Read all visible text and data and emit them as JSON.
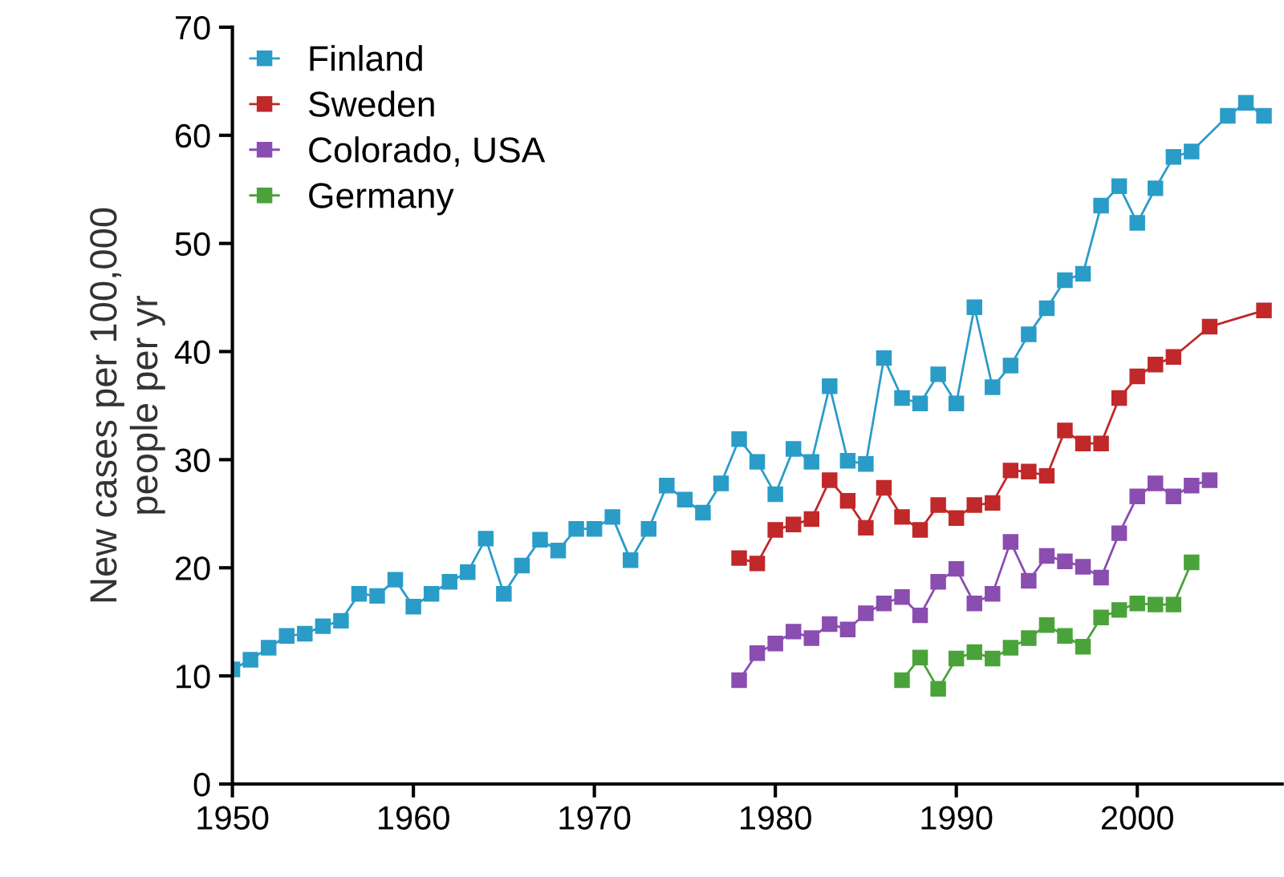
{
  "chart_data": {
    "type": "line",
    "ylabel": "New cases per 100,000\npeople per yr",
    "xlim": [
      1950,
      2008
    ],
    "xticks": [
      1950,
      1960,
      1970,
      1980,
      1990,
      2000
    ],
    "ylim": [
      0,
      70
    ],
    "yticks": [
      0,
      10,
      20,
      30,
      40,
      50,
      60,
      70
    ],
    "grid": false,
    "legend": "top left",
    "marker": "square",
    "line_style": "solid",
    "series": [
      {
        "name": "Finland",
        "color": "#2a9cc8",
        "x": [
          1950,
          1951,
          1952,
          1953,
          1954,
          1955,
          1956,
          1957,
          1958,
          1959,
          1960,
          1961,
          1962,
          1963,
          1964,
          1965,
          1966,
          1967,
          1968,
          1969,
          1970,
          1971,
          1972,
          1973,
          1974,
          1975,
          1976,
          1977,
          1978,
          1979,
          1980,
          1981,
          1982,
          1983,
          1984,
          1985,
          1986,
          1987,
          1988,
          1989,
          1990,
          1991,
          1992,
          1993,
          1994,
          1995,
          1996,
          1997,
          1998,
          1999,
          2000,
          2001,
          2002,
          2003,
          2005,
          2006,
          2007
        ],
        "values": [
          10.6,
          11.5,
          12.6,
          13.7,
          13.9,
          14.6,
          15.1,
          17.6,
          17.4,
          18.9,
          16.4,
          17.6,
          18.7,
          19.6,
          22.7,
          17.6,
          20.2,
          22.6,
          21.6,
          23.6,
          23.6,
          24.7,
          20.7,
          23.6,
          27.6,
          26.3,
          25.1,
          27.8,
          31.9,
          29.8,
          26.8,
          31.0,
          29.8,
          36.8,
          29.9,
          29.6,
          39.4,
          35.7,
          35.2,
          37.9,
          35.2,
          44.1,
          36.7,
          38.7,
          41.6,
          44.0,
          46.6,
          47.2,
          53.5,
          55.3,
          51.9,
          55.1,
          58.0,
          58.5,
          61.8,
          63.0,
          61.8
        ]
      },
      {
        "name": "Sweden",
        "color": "#c0282a",
        "x": [
          1978,
          1979,
          1980,
          1981,
          1982,
          1983,
          1984,
          1985,
          1986,
          1987,
          1988,
          1989,
          1990,
          1991,
          1992,
          1993,
          1994,
          1995,
          1996,
          1997,
          1998,
          1999,
          2000,
          2001,
          2002,
          2004,
          2007
        ],
        "values": [
          20.9,
          20.4,
          23.5,
          24.0,
          24.5,
          28.1,
          26.2,
          23.7,
          27.4,
          24.7,
          23.5,
          25.8,
          24.6,
          25.8,
          26.0,
          29.0,
          28.9,
          28.5,
          32.7,
          31.5,
          31.5,
          35.7,
          37.7,
          38.8,
          39.5,
          42.3,
          43.8
        ]
      },
      {
        "name": "Colorado, USA",
        "color": "#8a4db0",
        "x": [
          1978,
          1979,
          1980,
          1981,
          1982,
          1983,
          1984,
          1985,
          1986,
          1987,
          1988,
          1989,
          1990,
          1991,
          1992,
          1993,
          1994,
          1995,
          1996,
          1997,
          1998,
          1999,
          2000,
          2001,
          2002,
          2003,
          2004
        ],
        "values": [
          9.6,
          12.1,
          13.0,
          14.1,
          13.5,
          14.8,
          14.3,
          15.8,
          16.7,
          17.3,
          15.6,
          18.7,
          19.9,
          16.7,
          17.6,
          22.4,
          18.8,
          21.1,
          20.6,
          20.1,
          19.1,
          23.2,
          26.6,
          27.8,
          26.6,
          27.6,
          28.1
        ]
      },
      {
        "name": "Germany",
        "color": "#4aa33a",
        "x": [
          1987,
          1988,
          1989,
          1990,
          1991,
          1992,
          1993,
          1994,
          1995,
          1996,
          1997,
          1998,
          1999,
          2000,
          2001,
          2002,
          2003
        ],
        "values": [
          9.6,
          11.7,
          8.8,
          11.6,
          12.2,
          11.6,
          12.6,
          13.5,
          14.7,
          13.7,
          12.7,
          15.4,
          16.1,
          16.7,
          16.6,
          16.6,
          20.5
        ]
      }
    ]
  }
}
